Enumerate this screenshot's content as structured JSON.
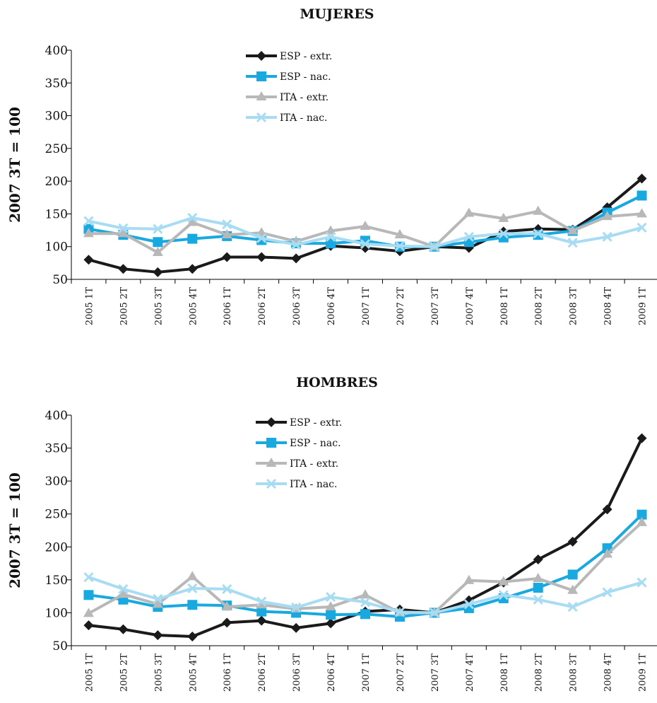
{
  "categories": [
    "2005 1T",
    "2005 2T",
    "2005 3T",
    "2005 4T",
    "2006 1T",
    "2006 2T",
    "2006 3T",
    "2006 4T",
    "2007 1T",
    "2007 2T",
    "2007 3T",
    "2007 4T",
    "2008 1T",
    "2008 2T",
    "2008 3T",
    "2008 4T",
    "2009 1T"
  ],
  "series_styles": [
    {
      "name": "ESP - extr.",
      "color": "#1a1a1a",
      "marker": "diamond"
    },
    {
      "name": "ESP - nac.",
      "color": "#19a9e1",
      "marker": "square"
    },
    {
      "name": "ITA - extr.",
      "color": "#b8b8b8",
      "marker": "triangle"
    },
    {
      "name": "ITA - nac.",
      "color": "#a8dcf3",
      "marker": "x"
    }
  ],
  "chart_data": [
    {
      "type": "line",
      "title": "MUJERES",
      "ylabel": "2007 3T = 100",
      "ylim": [
        50,
        400
      ],
      "yticks": [
        50,
        100,
        150,
        200,
        250,
        300,
        350,
        400
      ],
      "grid": false,
      "legend": "top-center",
      "categories": [
        "2005 1T",
        "2005 2T",
        "2005 3T",
        "2005 4T",
        "2006 1T",
        "2006 2T",
        "2006 3T",
        "2006 4T",
        "2007 1T",
        "2007 2T",
        "2007 3T",
        "2007 4T",
        "2008 1T",
        "2008 2T",
        "2008 3T",
        "2008 4T",
        "2009 1T"
      ],
      "series": [
        {
          "name": "ESP - extr.",
          "values": [
            80,
            66,
            61,
            66,
            84,
            84,
            82,
            101,
            98,
            93,
            100,
            98,
            123,
            127,
            126,
            160,
            204
          ]
        },
        {
          "name": "ESP - nac.",
          "values": [
            127,
            118,
            107,
            112,
            116,
            110,
            105,
            105,
            109,
            100,
            100,
            107,
            114,
            118,
            124,
            152,
            178
          ]
        },
        {
          "name": "ITA - extr.",
          "values": [
            120,
            120,
            91,
            137,
            118,
            121,
            108,
            124,
            131,
            118,
            100,
            151,
            143,
            154,
            124,
            146,
            150
          ]
        },
        {
          "name": "ITA - nac.",
          "values": [
            139,
            128,
            127,
            144,
            134,
            113,
            103,
            115,
            104,
            101,
            100,
            115,
            120,
            120,
            106,
            115,
            129
          ]
        }
      ]
    },
    {
      "type": "line",
      "title": "HOMBRES",
      "ylabel": "2007 3T = 100",
      "ylim": [
        50,
        400
      ],
      "yticks": [
        50,
        100,
        150,
        200,
        250,
        300,
        350,
        400
      ],
      "grid": false,
      "legend": "top-center",
      "categories": [
        "2005 1T",
        "2005 2T",
        "2005 3T",
        "2005 4T",
        "2006 1T",
        "2006 2T",
        "2006 3T",
        "2006 4T",
        "2007 1T",
        "2007 2T",
        "2007 3T",
        "2007 4T",
        "2008 1T",
        "2008 2T",
        "2008 3T",
        "2008 4T",
        "2009 1T"
      ],
      "series": [
        {
          "name": "ESP - extr.",
          "values": [
            81,
            75,
            66,
            64,
            85,
            88,
            77,
            84,
            102,
            105,
            100,
            119,
            146,
            181,
            208,
            257,
            365
          ]
        },
        {
          "name": "ESP - nac.",
          "values": [
            127,
            120,
            109,
            112,
            111,
            102,
            100,
            97,
            98,
            94,
            100,
            107,
            122,
            138,
            158,
            198,
            249
          ]
        },
        {
          "name": "ITA - extr.",
          "values": [
            99,
            128,
            113,
            155,
            109,
            112,
            106,
            109,
            127,
            100,
            100,
            149,
            147,
            152,
            134,
            189,
            237
          ]
        },
        {
          "name": "ITA - nac.",
          "values": [
            154,
            136,
            121,
            137,
            136,
            117,
            108,
            124,
            116,
            101,
            100,
            113,
            127,
            120,
            109,
            131,
            146
          ]
        }
      ]
    }
  ]
}
